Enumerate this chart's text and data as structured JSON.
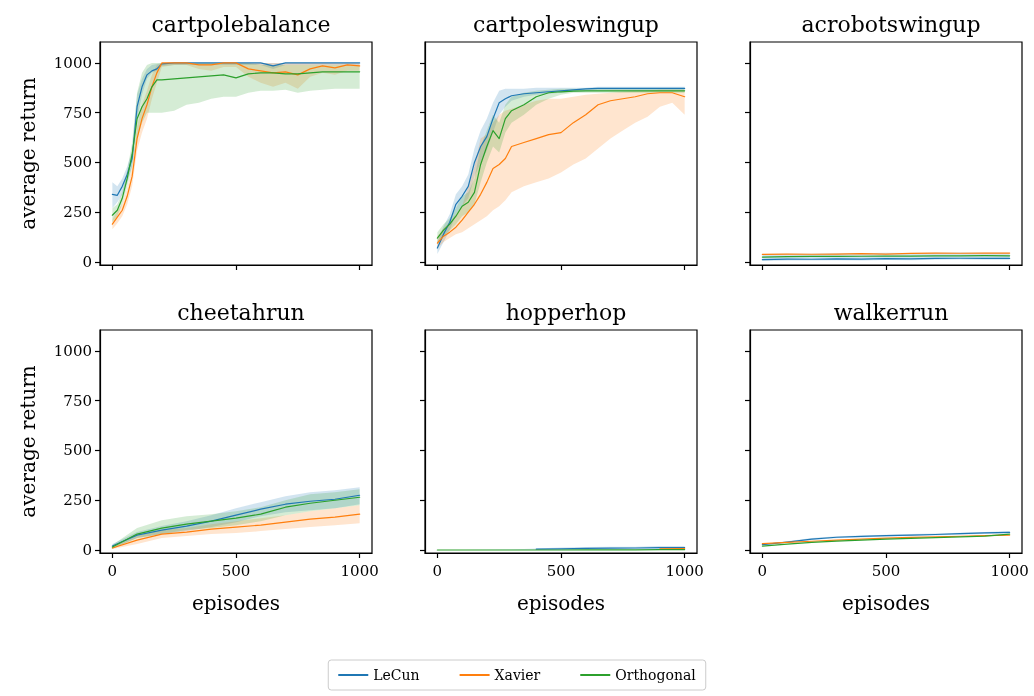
{
  "chart_data": [
    {
      "type": "line",
      "title": "cartpolebalance",
      "ylabel": "average return",
      "xlim": [
        -50,
        1050
      ],
      "ylim": [
        -15,
        1105
      ],
      "xticks": [
        0,
        500,
        1000
      ],
      "yticks": [
        0,
        250,
        500,
        750,
        1000
      ],
      "tick_labels": "y",
      "legend": "bottom",
      "x": [
        0,
        20,
        40,
        60,
        80,
        100,
        120,
        140,
        160,
        180,
        200,
        250,
        300,
        350,
        400,
        450,
        500,
        550,
        600,
        650,
        700,
        750,
        800,
        850,
        900,
        950,
        1000
      ],
      "series": [
        {
          "name": "LeCun",
          "color": "#1f77b4",
          "values": [
            340,
            335,
            380,
            440,
            520,
            780,
            880,
            940,
            960,
            970,
            995,
            1000,
            1000,
            1000,
            1000,
            1000,
            1000,
            1000,
            1000,
            985,
            1000,
            1000,
            1000,
            1000,
            1000,
            1000,
            1000
          ],
          "lower": [
            270,
            300,
            340,
            400,
            480,
            720,
            840,
            920,
            950,
            960,
            985,
            990,
            990,
            990,
            990,
            990,
            990,
            990,
            990,
            970,
            990,
            990,
            990,
            990,
            990,
            990,
            990
          ],
          "upper": [
            400,
            380,
            420,
            480,
            560,
            840,
            920,
            970,
            990,
            995,
            1000,
            1000,
            1000,
            1000,
            1000,
            1000,
            1000,
            1000,
            1000,
            1000,
            1000,
            1000,
            1000,
            1000,
            1000,
            1000,
            1000
          ]
        },
        {
          "name": "Xavier",
          "color": "#ff7f0e",
          "values": [
            190,
            225,
            260,
            330,
            430,
            620,
            720,
            790,
            880,
            950,
            1000,
            1000,
            1000,
            990,
            990,
            1000,
            1000,
            970,
            960,
            950,
            955,
            940,
            970,
            985,
            975,
            990,
            985
          ],
          "lower": [
            165,
            195,
            230,
            290,
            380,
            560,
            650,
            720,
            820,
            900,
            980,
            990,
            990,
            970,
            960,
            980,
            980,
            930,
            900,
            880,
            900,
            870,
            930,
            950,
            940,
            960,
            960
          ],
          "upper": [
            215,
            255,
            290,
            370,
            480,
            680,
            790,
            860,
            940,
            990,
            1000,
            1000,
            1000,
            1000,
            1000,
            1000,
            1000,
            1000,
            1000,
            1000,
            1000,
            1000,
            1000,
            1000,
            1000,
            1000,
            1000
          ]
        },
        {
          "name": "Orthogonal",
          "color": "#2ca02c",
          "values": [
            235,
            260,
            320,
            420,
            540,
            720,
            780,
            820,
            880,
            915,
            915,
            920,
            925,
            930,
            935,
            940,
            925,
            945,
            950,
            950,
            945,
            945,
            950,
            955,
            955,
            955,
            955
          ],
          "lower": [
            200,
            230,
            290,
            380,
            480,
            620,
            700,
            750,
            750,
            750,
            750,
            760,
            790,
            800,
            820,
            830,
            830,
            850,
            860,
            860,
            865,
            850,
            860,
            865,
            870,
            870,
            870
          ],
          "upper": [
            270,
            290,
            350,
            460,
            600,
            850,
            950,
            990,
            1000,
            1000,
            1000,
            1000,
            1000,
            1000,
            1000,
            1000,
            1000,
            1000,
            990,
            990,
            990,
            990,
            990,
            990,
            990,
            990,
            990
          ]
        }
      ]
    },
    {
      "type": "line",
      "title": "cartpoleswingup",
      "xlim": [
        -50,
        1050
      ],
      "ylim": [
        -15,
        1105
      ],
      "xticks": [
        0,
        500,
        1000
      ],
      "yticks": [
        0,
        250,
        500,
        750,
        1000
      ],
      "tick_labels": false,
      "x": [
        0,
        25,
        50,
        75,
        100,
        125,
        150,
        175,
        200,
        225,
        250,
        275,
        300,
        350,
        400,
        450,
        500,
        550,
        600,
        650,
        700,
        750,
        800,
        850,
        900,
        950,
        1000
      ],
      "series": [
        {
          "color": "#1f77b4",
          "values": [
            70,
            140,
            200,
            290,
            330,
            380,
            500,
            580,
            630,
            720,
            800,
            820,
            835,
            845,
            850,
            855,
            860,
            865,
            870,
            872,
            872,
            872,
            872,
            872,
            872,
            872,
            872
          ],
          "lower": [
            40,
            100,
            160,
            240,
            280,
            320,
            430,
            500,
            560,
            650,
            740,
            780,
            810,
            830,
            840,
            845,
            850,
            855,
            858,
            860,
            860,
            860,
            860,
            860,
            860,
            860,
            860
          ],
          "upper": [
            100,
            180,
            240,
            340,
            380,
            440,
            570,
            660,
            720,
            800,
            860,
            870,
            870,
            870,
            875,
            875,
            875,
            875,
            875,
            880,
            880,
            880,
            880,
            880,
            880,
            880,
            880
          ]
        },
        {
          "color": "#ff7f0e",
          "values": [
            95,
            130,
            150,
            175,
            210,
            250,
            290,
            340,
            400,
            470,
            490,
            520,
            580,
            600,
            620,
            640,
            650,
            700,
            740,
            790,
            810,
            820,
            830,
            845,
            850,
            850,
            830
          ],
          "lower": [
            70,
            100,
            120,
            140,
            150,
            170,
            190,
            210,
            230,
            260,
            280,
            310,
            350,
            380,
            400,
            420,
            450,
            490,
            520,
            570,
            620,
            660,
            700,
            730,
            780,
            800,
            740
          ],
          "upper": [
            130,
            170,
            200,
            240,
            280,
            380,
            480,
            620,
            640,
            700,
            740,
            760,
            770,
            790,
            810,
            820,
            820,
            830,
            840,
            845,
            850,
            855,
            860,
            860,
            865,
            865,
            865
          ]
        },
        {
          "color": "#2ca02c",
          "values": [
            120,
            160,
            190,
            230,
            280,
            300,
            350,
            490,
            580,
            660,
            620,
            720,
            760,
            790,
            830,
            850,
            855,
            858,
            860,
            860,
            860,
            860,
            860,
            860,
            860,
            860,
            860
          ],
          "lower": [
            90,
            130,
            160,
            190,
            230,
            250,
            290,
            400,
            500,
            580,
            550,
            650,
            700,
            740,
            790,
            820,
            840,
            850,
            850,
            850,
            850,
            850,
            850,
            850,
            850,
            850,
            850
          ],
          "upper": [
            150,
            190,
            220,
            270,
            330,
            350,
            420,
            580,
            660,
            740,
            700,
            790,
            830,
            850,
            860,
            865,
            870,
            870,
            870,
            870,
            870,
            870,
            870,
            870,
            870,
            870,
            870
          ]
        }
      ]
    },
    {
      "type": "line",
      "title": "acrobotswingup",
      "xlim": [
        -50,
        1050
      ],
      "ylim": [
        -15,
        1105
      ],
      "xticks": [
        0,
        500,
        1000
      ],
      "yticks": [
        0,
        250,
        500,
        750,
        1000
      ],
      "tick_labels": false,
      "x": [
        0,
        100,
        200,
        300,
        400,
        500,
        600,
        700,
        800,
        900,
        1000
      ],
      "series": [
        {
          "color": "#1f77b4",
          "values": [
            12,
            15,
            14,
            16,
            15,
            17,
            16,
            18,
            19,
            18,
            18
          ],
          "lower": [
            5,
            8,
            7,
            9,
            8,
            10,
            9,
            11,
            12,
            11,
            11
          ],
          "upper": [
            40,
            42,
            42,
            44,
            44,
            46,
            45,
            46,
            48,
            47,
            47
          ]
        },
        {
          "color": "#ff7f0e",
          "values": [
            38,
            40,
            39,
            40,
            42,
            40,
            43,
            45,
            44,
            45,
            45
          ]
        },
        {
          "color": "#2ca02c",
          "values": [
            25,
            27,
            28,
            28,
            29,
            30,
            30,
            31,
            31,
            32,
            31
          ]
        }
      ]
    },
    {
      "type": "line",
      "title": "cheetahrun",
      "xlabel": "episodes",
      "ylabel": "average return",
      "xlim": [
        -50,
        1050
      ],
      "ylim": [
        -15,
        1105
      ],
      "xticks": [
        0,
        500,
        1000
      ],
      "yticks": [
        0,
        250,
        500,
        750,
        1000
      ],
      "x": [
        0,
        100,
        200,
        300,
        400,
        500,
        600,
        700,
        800,
        900,
        1000
      ],
      "series": [
        {
          "color": "#1f77b4",
          "values": [
            20,
            75,
            100,
            120,
            145,
            175,
            205,
            230,
            245,
            255,
            275
          ],
          "lower": [
            10,
            60,
            80,
            95,
            115,
            140,
            170,
            190,
            200,
            210,
            230
          ],
          "upper": [
            30,
            90,
            120,
            145,
            175,
            210,
            240,
            270,
            290,
            300,
            315
          ]
        },
        {
          "color": "#ff7f0e",
          "values": [
            10,
            50,
            80,
            90,
            105,
            115,
            125,
            140,
            155,
            165,
            180
          ],
          "lower": [
            5,
            30,
            60,
            70,
            80,
            85,
            95,
            105,
            115,
            125,
            135
          ],
          "upper": [
            15,
            70,
            100,
            110,
            130,
            145,
            160,
            175,
            195,
            210,
            225
          ]
        },
        {
          "color": "#2ca02c",
          "values": [
            15,
            80,
            110,
            130,
            145,
            160,
            180,
            215,
            235,
            250,
            265
          ],
          "lower": [
            5,
            60,
            80,
            100,
            110,
            125,
            145,
            175,
            195,
            210,
            225
          ],
          "upper": [
            25,
            110,
            150,
            170,
            180,
            195,
            215,
            250,
            280,
            290,
            305
          ]
        }
      ]
    },
    {
      "type": "line",
      "title": "hopperhop",
      "xlabel": "episodes",
      "xlim": [
        -50,
        1050
      ],
      "ylim": [
        -15,
        1105
      ],
      "xticks": [
        0,
        500,
        1000
      ],
      "yticks": [
        0,
        250,
        500,
        750,
        1000
      ],
      "tick_labels": "x",
      "x": [
        0,
        100,
        200,
        300,
        400,
        500,
        600,
        700,
        800,
        900,
        1000
      ],
      "series": [
        {
          "color": "#1f77b4",
          "values": [
            null,
            null,
            null,
            null,
            4,
            6,
            8,
            9,
            10,
            12,
            12
          ],
          "lower": [
            0,
            0,
            0,
            0,
            1,
            2,
            3,
            3,
            4,
            5,
            5
          ],
          "upper": [
            0,
            0,
            1,
            3,
            8,
            12,
            15,
            16,
            17,
            20,
            20
          ]
        },
        {
          "color": "#ff7f0e",
          "values": [
            null,
            null,
            null,
            null,
            null,
            null,
            null,
            null,
            null,
            6,
            7
          ]
        },
        {
          "color": "#2ca02c",
          "values": [
            0,
            0,
            0,
            0,
            0,
            0,
            1,
            1,
            1,
            2,
            2
          ]
        }
      ]
    },
    {
      "type": "line",
      "title": "walkerrun",
      "xlabel": "episodes",
      "xlim": [
        -50,
        1050
      ],
      "ylim": [
        -15,
        1105
      ],
      "xticks": [
        0,
        500,
        1000
      ],
      "yticks": [
        0,
        250,
        500,
        750,
        1000
      ],
      "tick_labels": "x",
      "x": [
        0,
        100,
        200,
        300,
        400,
        500,
        600,
        700,
        800,
        900,
        1000
      ],
      "series": [
        {
          "color": "#1f77b4",
          "values": [
            27,
            40,
            55,
            64,
            68,
            72,
            75,
            78,
            82,
            86,
            89
          ],
          "lower": [
            24,
            36,
            50,
            59,
            63,
            67,
            70,
            73,
            77,
            81,
            84
          ],
          "upper": [
            30,
            44,
            60,
            69,
            73,
            77,
            80,
            83,
            87,
            91,
            95
          ]
        },
        {
          "color": "#ff7f0e",
          "values": [
            32,
            38,
            44,
            50,
            55,
            60,
            63,
            66,
            69,
            72,
            75
          ]
        },
        {
          "color": "#2ca02c",
          "values": [
            20,
            30,
            38,
            45,
            50,
            55,
            58,
            62,
            66,
            70,
            80
          ]
        }
      ]
    }
  ]
}
